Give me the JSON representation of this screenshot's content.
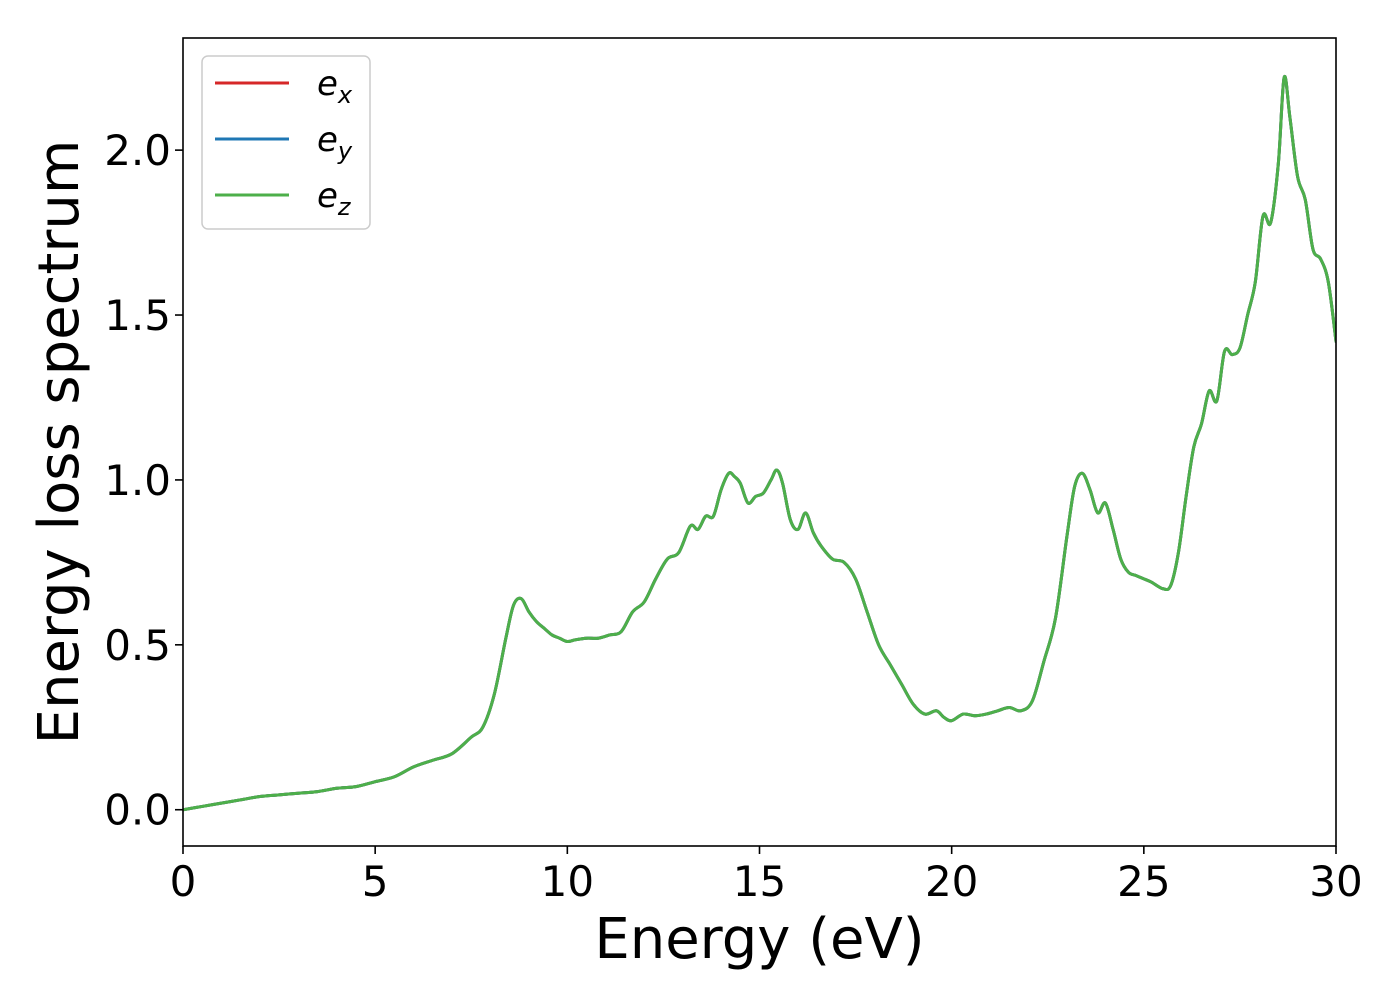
{
  "chart_data": {
    "type": "line",
    "title": "",
    "xlabel": "Energy (eV)",
    "ylabel": "Energy loss spectrum",
    "xlim": [
      0,
      30
    ],
    "ylim": [
      -0.11,
      2.34
    ],
    "xticks": [
      0,
      5,
      10,
      15,
      20,
      25,
      30
    ],
    "xtick_labels": [
      "0",
      "5",
      "10",
      "15",
      "20",
      "25",
      "30"
    ],
    "yticks": [
      0.0,
      0.5,
      1.0,
      1.5,
      2.0
    ],
    "ytick_labels": [
      "0.0",
      "0.5",
      "1.0",
      "1.5",
      "2.0"
    ],
    "grid": false,
    "legend_position": "top-left",
    "series": [
      {
        "name": "e",
        "subscript": "x",
        "color": "#d62728",
        "values_ref": "shared"
      },
      {
        "name": "e",
        "subscript": "y",
        "color": "#1f77b4",
        "values_ref": "shared"
      },
      {
        "name": "e",
        "subscript": "z",
        "color": "#4daf4a",
        "values_ref": "shared"
      }
    ],
    "x": [
      0,
      0.5,
      1,
      1.5,
      2,
      2.5,
      3,
      3.5,
      4,
      4.5,
      5,
      5.5,
      6,
      6.5,
      7,
      7.5,
      7.8,
      8.1,
      8.4,
      8.6,
      8.8,
      9.0,
      9.2,
      9.4,
      9.6,
      9.8,
      10.0,
      10.2,
      10.5,
      10.8,
      11.1,
      11.4,
      11.7,
      12.0,
      12.3,
      12.6,
      12.9,
      13.2,
      13.4,
      13.6,
      13.8,
      14.0,
      14.2,
      14.35,
      14.5,
      14.7,
      14.9,
      15.1,
      15.3,
      15.45,
      15.6,
      15.8,
      16.0,
      16.2,
      16.4,
      16.6,
      16.9,
      17.2,
      17.5,
      17.8,
      18.1,
      18.4,
      18.7,
      19.0,
      19.3,
      19.6,
      19.8,
      20.0,
      20.3,
      20.6,
      20.9,
      21.2,
      21.5,
      21.8,
      22.1,
      22.4,
      22.7,
      23.0,
      23.2,
      23.4,
      23.6,
      23.8,
      24.0,
      24.2,
      24.4,
      24.6,
      24.8,
      25.0,
      25.2,
      25.5,
      25.7,
      25.9,
      26.1,
      26.3,
      26.5,
      26.7,
      26.9,
      27.1,
      27.3,
      27.5,
      27.7,
      27.9,
      28.1,
      28.3,
      28.5,
      28.65,
      28.8,
      29.0,
      29.2,
      29.4,
      29.6,
      29.8,
      30.0
    ],
    "values": [
      0.0,
      0.01,
      0.02,
      0.03,
      0.04,
      0.045,
      0.05,
      0.055,
      0.065,
      0.07,
      0.085,
      0.1,
      0.13,
      0.15,
      0.17,
      0.22,
      0.25,
      0.35,
      0.52,
      0.62,
      0.64,
      0.6,
      0.57,
      0.55,
      0.53,
      0.52,
      0.51,
      0.515,
      0.52,
      0.52,
      0.53,
      0.54,
      0.6,
      0.63,
      0.7,
      0.76,
      0.78,
      0.86,
      0.85,
      0.89,
      0.89,
      0.97,
      1.02,
      1.01,
      0.99,
      0.93,
      0.95,
      0.96,
      1.0,
      1.03,
      0.99,
      0.88,
      0.85,
      0.9,
      0.84,
      0.8,
      0.76,
      0.75,
      0.7,
      0.6,
      0.5,
      0.44,
      0.38,
      0.32,
      0.29,
      0.3,
      0.28,
      0.27,
      0.29,
      0.285,
      0.29,
      0.3,
      0.31,
      0.3,
      0.33,
      0.45,
      0.58,
      0.83,
      0.98,
      1.02,
      0.97,
      0.9,
      0.93,
      0.85,
      0.76,
      0.72,
      0.71,
      0.7,
      0.69,
      0.67,
      0.68,
      0.78,
      0.95,
      1.1,
      1.17,
      1.27,
      1.24,
      1.39,
      1.38,
      1.4,
      1.5,
      1.6,
      1.8,
      1.78,
      1.96,
      2.22,
      2.1,
      1.92,
      1.85,
      1.7,
      1.67,
      1.6,
      1.42
    ]
  }
}
